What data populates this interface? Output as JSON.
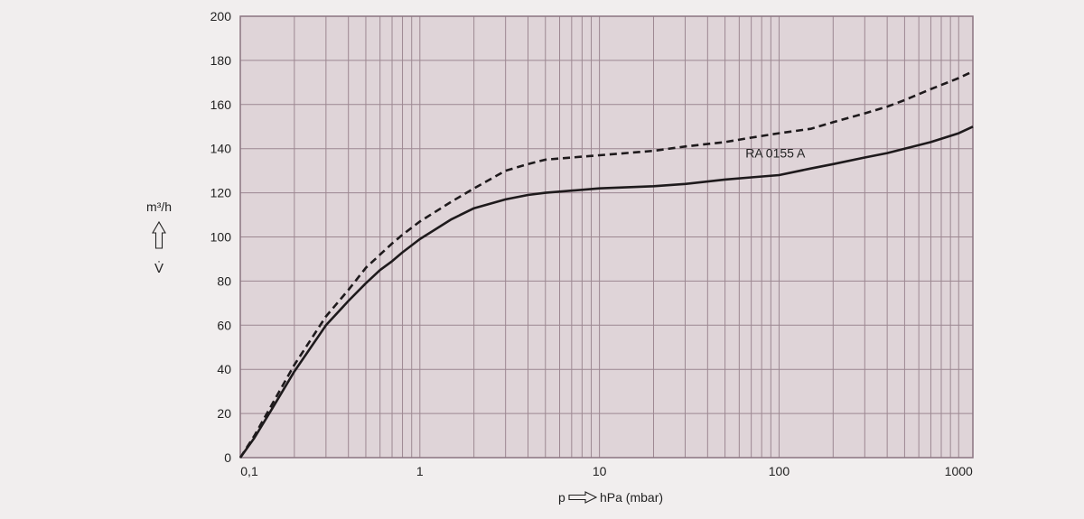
{
  "colors": {
    "page_background": "#f1eeee",
    "plot_background": "#dfd4d8",
    "grid_line": "#9c8791",
    "frame": "#8a7480",
    "curve": "#1e1a1c"
  },
  "chart_data": {
    "type": "line",
    "title": "",
    "x_scale": "log",
    "y_scale": "linear",
    "xlim": [
      0.1,
      1200
    ],
    "ylim": [
      0,
      200
    ],
    "grid": true,
    "x_ticks": [
      0.1,
      1,
      10,
      100,
      1000
    ],
    "x_tick_labels": [
      "0,1",
      "1",
      "10",
      "100",
      "1000"
    ],
    "y_ticks": [
      0,
      20,
      40,
      60,
      80,
      100,
      120,
      140,
      160,
      180,
      200
    ],
    "y_tick_labels": [
      "0",
      "20",
      "40",
      "60",
      "80",
      "100",
      "120",
      "140",
      "160",
      "180",
      "200"
    ],
    "xlabel": {
      "symbol": "p",
      "arrow": "right-hollow-arrow",
      "unit": "hPa (mbar)"
    },
    "ylabel": {
      "unit": "m³/h",
      "arrow": "up-hollow-arrow",
      "symbol": "V̇"
    },
    "series": [
      {
        "name": "RA 0155 A",
        "style": "solid",
        "points": [
          [
            0.1,
            0
          ],
          [
            0.12,
            9
          ],
          [
            0.15,
            22
          ],
          [
            0.2,
            39
          ],
          [
            0.3,
            60
          ],
          [
            0.4,
            71
          ],
          [
            0.5,
            79
          ],
          [
            0.6,
            85
          ],
          [
            0.7,
            89
          ],
          [
            0.8,
            93
          ],
          [
            1,
            99
          ],
          [
            1.5,
            108
          ],
          [
            2,
            113
          ],
          [
            3,
            117
          ],
          [
            4,
            119
          ],
          [
            5,
            120
          ],
          [
            7,
            121
          ],
          [
            10,
            122
          ],
          [
            20,
            123
          ],
          [
            30,
            124
          ],
          [
            50,
            126
          ],
          [
            70,
            127
          ],
          [
            100,
            128
          ],
          [
            150,
            131
          ],
          [
            200,
            133
          ],
          [
            300,
            136
          ],
          [
            400,
            138
          ],
          [
            500,
            140
          ],
          [
            700,
            143
          ],
          [
            1000,
            147
          ],
          [
            1200,
            150
          ]
        ]
      },
      {
        "name": "",
        "style": "dashed",
        "points": [
          [
            0.1,
            0
          ],
          [
            0.12,
            10
          ],
          [
            0.15,
            24
          ],
          [
            0.2,
            42
          ],
          [
            0.3,
            64
          ],
          [
            0.4,
            76
          ],
          [
            0.5,
            86
          ],
          [
            0.6,
            92
          ],
          [
            0.7,
            97
          ],
          [
            0.8,
            101
          ],
          [
            1,
            107
          ],
          [
            1.5,
            116
          ],
          [
            2,
            122
          ],
          [
            3,
            130
          ],
          [
            4,
            133
          ],
          [
            5,
            135
          ],
          [
            7,
            136
          ],
          [
            10,
            137
          ],
          [
            20,
            139
          ],
          [
            30,
            141
          ],
          [
            50,
            143
          ],
          [
            70,
            145
          ],
          [
            100,
            147
          ],
          [
            150,
            149
          ],
          [
            200,
            152
          ],
          [
            300,
            156
          ],
          [
            400,
            159
          ],
          [
            500,
            162
          ],
          [
            700,
            167
          ],
          [
            1000,
            172
          ],
          [
            1200,
            175
          ]
        ]
      }
    ],
    "annotations": [
      {
        "text": "RA 0155 A",
        "x": 65,
        "y": 138
      }
    ]
  }
}
